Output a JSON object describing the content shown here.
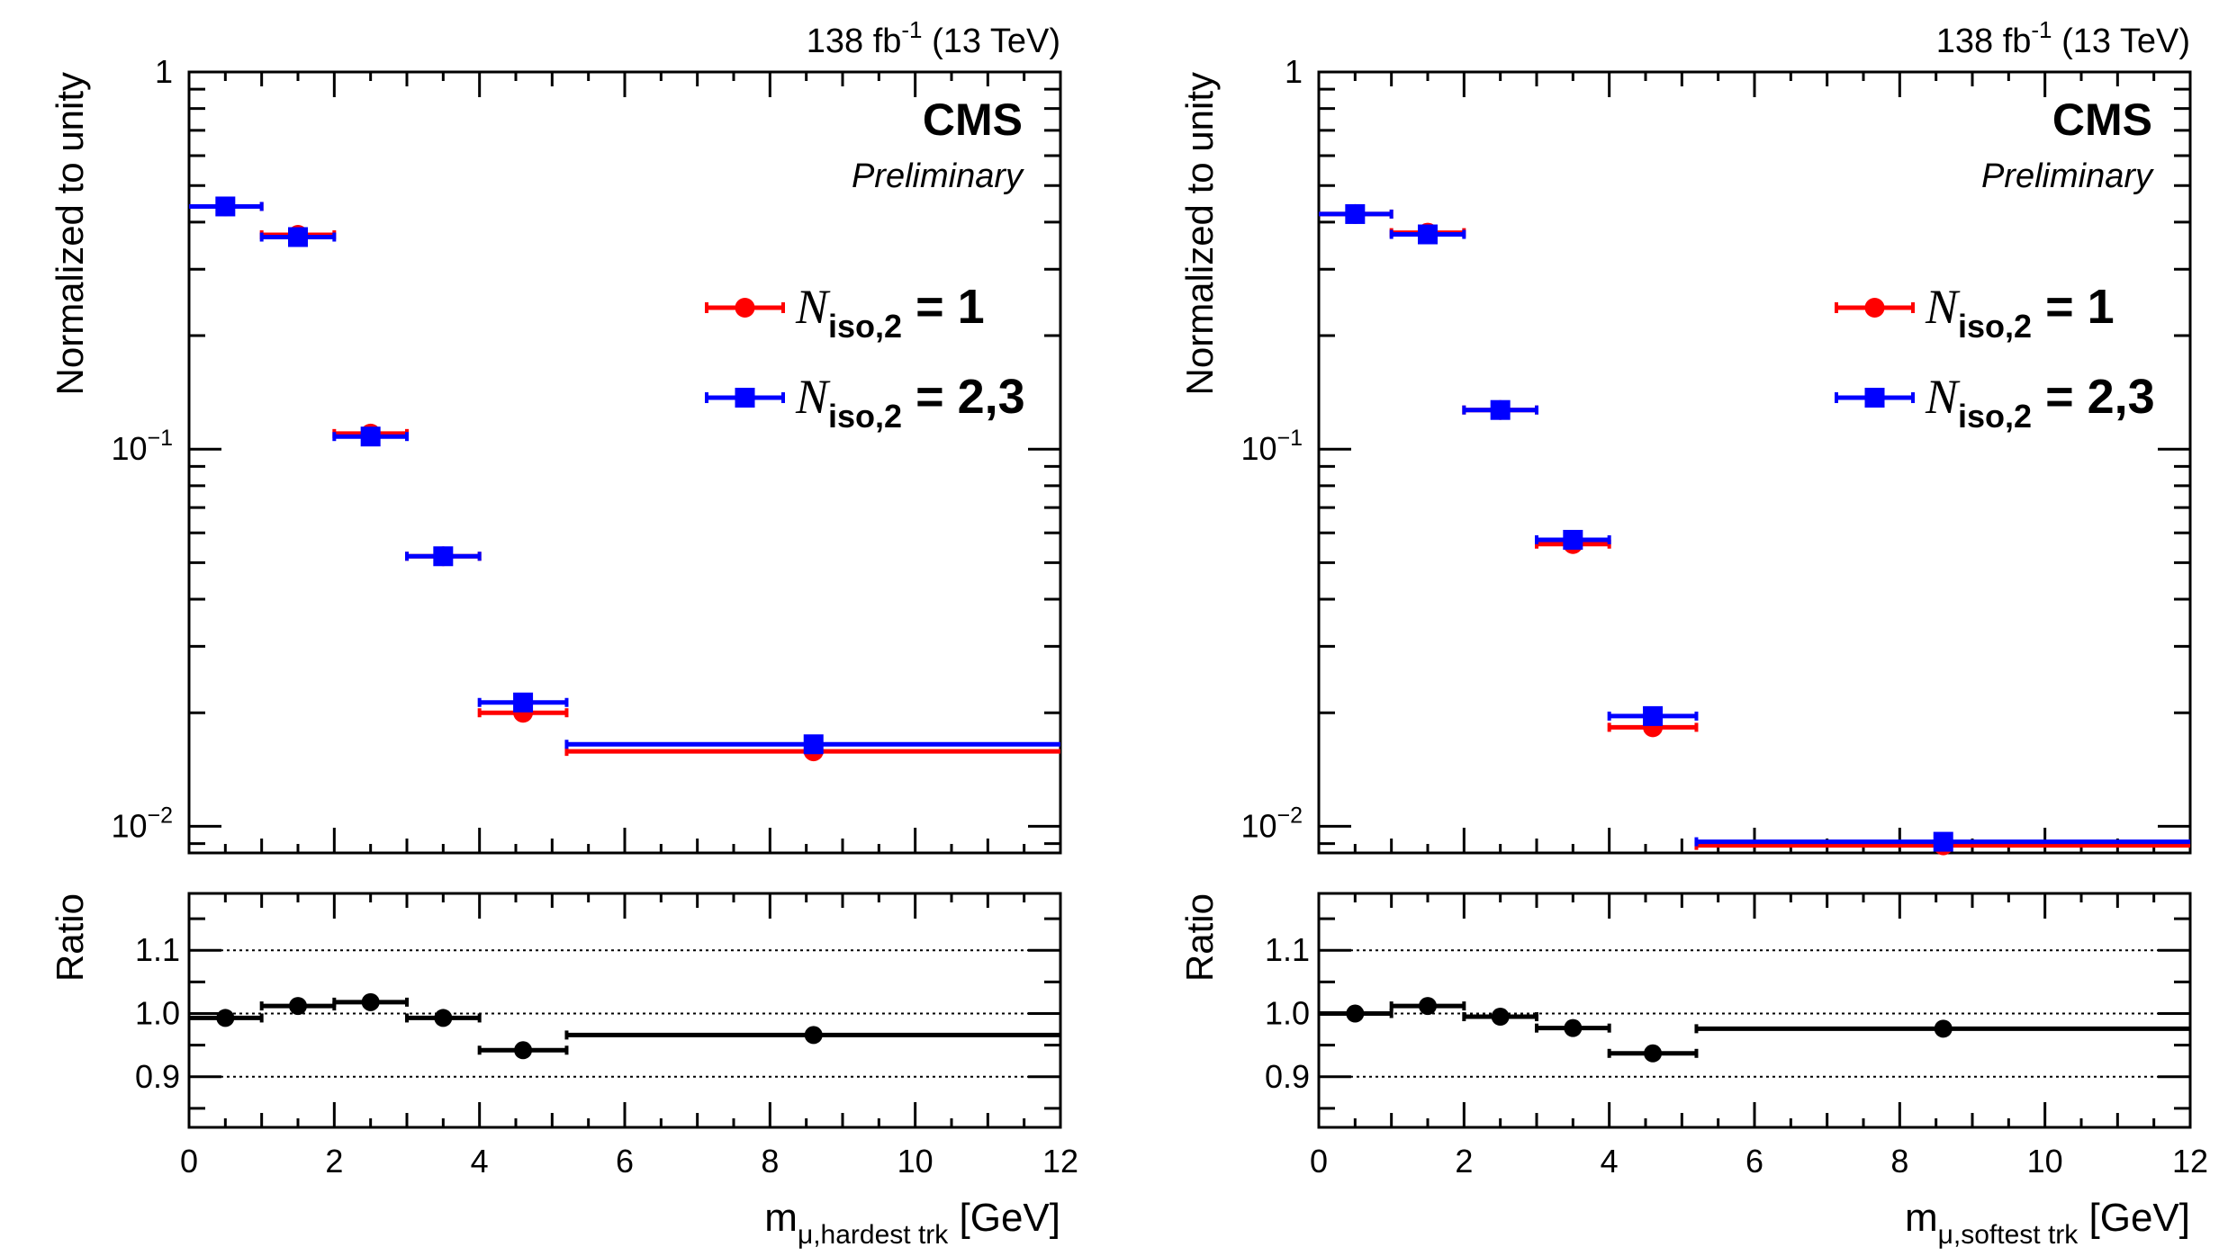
{
  "chart_data": [
    {
      "type": "scatter",
      "panel": "left",
      "lumi_label": {
        "base": "138 fb",
        "sup": "-1",
        "energy": " (13 TeV)"
      },
      "experiment": "CMS",
      "status": "Preliminary",
      "ylabel": "Normalized to unity",
      "yscale": "log",
      "ylim": [
        0.0085,
        1.0
      ],
      "yticklabels": [
        {
          "value": 1,
          "base": "1",
          "exp": ""
        },
        {
          "value": 0.1,
          "base": "10",
          "exp": "−1"
        },
        {
          "value": 0.01,
          "base": "10",
          "exp": "−2"
        }
      ],
      "xlabel": {
        "base": "m",
        "sub": "μ,hardest trk",
        "unit": " [GeV]"
      },
      "xlim": [
        0,
        12
      ],
      "xticks": [
        0,
        2,
        4,
        6,
        8,
        10,
        12
      ],
      "xticklabels": [
        "0",
        "2",
        "4",
        "6",
        "8",
        "10",
        "12"
      ],
      "legend": [
        {
          "base": "N",
          "sub": "iso,2",
          "value": " = 1",
          "color": "#ff0000",
          "marker": "circle"
        },
        {
          "base": "N",
          "sub": "iso,2",
          "value": " = 2,3",
          "color": "#0000ff",
          "marker": "square"
        }
      ],
      "series": [
        {
          "name": "N_iso,2 = 1",
          "color": "#ff0000",
          "marker": "circle",
          "points": [
            {
              "x": 0.5,
              "xlo": 0.0,
              "xhi": 1.0,
              "y": 0.44
            },
            {
              "x": 1.5,
              "xlo": 1.0,
              "xhi": 2.0,
              "y": 0.37
            },
            {
              "x": 2.5,
              "xlo": 2.0,
              "xhi": 3.0,
              "y": 0.11
            },
            {
              "x": 3.5,
              "xlo": 3.0,
              "xhi": 4.0,
              "y": 0.052
            },
            {
              "x": 4.6,
              "xlo": 4.0,
              "xhi": 5.2,
              "y": 0.02
            },
            {
              "x": 8.6,
              "xlo": 5.2,
              "xhi": 12.0,
              "y": 0.0158
            }
          ]
        },
        {
          "name": "N_iso,2 = 2,3",
          "color": "#0000ff",
          "marker": "square",
          "points": [
            {
              "x": 0.5,
              "xlo": 0.0,
              "xhi": 1.0,
              "y": 0.44
            },
            {
              "x": 1.5,
              "xlo": 1.0,
              "xhi": 2.0,
              "y": 0.365
            },
            {
              "x": 2.5,
              "xlo": 2.0,
              "xhi": 3.0,
              "y": 0.108
            },
            {
              "x": 3.5,
              "xlo": 3.0,
              "xhi": 4.0,
              "y": 0.052
            },
            {
              "x": 4.6,
              "xlo": 4.0,
              "xhi": 5.2,
              "y": 0.0213
            },
            {
              "x": 8.6,
              "xlo": 5.2,
              "xhi": 12.0,
              "y": 0.0165
            }
          ]
        }
      ],
      "ratio": {
        "ylabel": "Ratio",
        "ylim": [
          0.82,
          1.19
        ],
        "yticks": [
          0.9,
          1.0,
          1.1
        ],
        "yticklabels": [
          "0.9",
          "1.0",
          "1.1"
        ],
        "gridlines": [
          0.9,
          1.0,
          1.1
        ],
        "color": "#000000",
        "points": [
          {
            "x": 0.5,
            "xlo": 0.0,
            "xhi": 1.0,
            "y": 0.993
          },
          {
            "x": 1.5,
            "xlo": 1.0,
            "xhi": 2.0,
            "y": 1.012
          },
          {
            "x": 2.5,
            "xlo": 2.0,
            "xhi": 3.0,
            "y": 1.018
          },
          {
            "x": 3.5,
            "xlo": 3.0,
            "xhi": 4.0,
            "y": 0.993
          },
          {
            "x": 4.6,
            "xlo": 4.0,
            "xhi": 5.2,
            "y": 0.942
          },
          {
            "x": 8.6,
            "xlo": 5.2,
            "xhi": 12.0,
            "y": 0.966
          }
        ]
      }
    },
    {
      "type": "scatter",
      "panel": "right",
      "lumi_label": {
        "base": "138 fb",
        "sup": "-1",
        "energy": " (13 TeV)"
      },
      "experiment": "CMS",
      "status": "Preliminary",
      "ylabel": "Normalized to unity",
      "yscale": "log",
      "ylim": [
        0.0085,
        1.0
      ],
      "yticklabels": [
        {
          "value": 1,
          "base": "1",
          "exp": ""
        },
        {
          "value": 0.1,
          "base": "10",
          "exp": "−1"
        },
        {
          "value": 0.01,
          "base": "10",
          "exp": "−2"
        }
      ],
      "xlabel": {
        "base": "m",
        "sub": "μ,softest trk",
        "unit": " [GeV]"
      },
      "xlim": [
        0,
        12
      ],
      "xticks": [
        0,
        2,
        4,
        6,
        8,
        10,
        12
      ],
      "xticklabels": [
        "0",
        "2",
        "4",
        "6",
        "8",
        "10",
        "12"
      ],
      "legend": [
        {
          "base": "N",
          "sub": "iso,2",
          "value": " = 1",
          "color": "#ff0000",
          "marker": "circle"
        },
        {
          "base": "N",
          "sub": "iso,2",
          "value": " = 2,3",
          "color": "#0000ff",
          "marker": "square"
        }
      ],
      "series": [
        {
          "name": "N_iso,2 = 1",
          "color": "#ff0000",
          "marker": "circle",
          "points": [
            {
              "x": 0.5,
              "xlo": 0.0,
              "xhi": 1.0,
              "y": 0.42
            },
            {
              "x": 1.5,
              "xlo": 1.0,
              "xhi": 2.0,
              "y": 0.375
            },
            {
              "x": 2.5,
              "xlo": 2.0,
              "xhi": 3.0,
              "y": 0.127
            },
            {
              "x": 3.5,
              "xlo": 3.0,
              "xhi": 4.0,
              "y": 0.056
            },
            {
              "x": 4.6,
              "xlo": 4.0,
              "xhi": 5.2,
              "y": 0.0183
            },
            {
              "x": 8.6,
              "xlo": 5.2,
              "xhi": 12.0,
              "y": 0.0089
            }
          ]
        },
        {
          "name": "N_iso,2 = 2,3",
          "color": "#0000ff",
          "marker": "square",
          "points": [
            {
              "x": 0.5,
              "xlo": 0.0,
              "xhi": 1.0,
              "y": 0.42
            },
            {
              "x": 1.5,
              "xlo": 1.0,
              "xhi": 2.0,
              "y": 0.371
            },
            {
              "x": 2.5,
              "xlo": 2.0,
              "xhi": 3.0,
              "y": 0.127
            },
            {
              "x": 3.5,
              "xlo": 3.0,
              "xhi": 4.0,
              "y": 0.0575
            },
            {
              "x": 4.6,
              "xlo": 4.0,
              "xhi": 5.2,
              "y": 0.0196
            },
            {
              "x": 8.6,
              "xlo": 5.2,
              "xhi": 12.0,
              "y": 0.0091
            }
          ]
        }
      ],
      "ratio": {
        "ylabel": "Ratio",
        "ylim": [
          0.82,
          1.19
        ],
        "yticks": [
          0.9,
          1.0,
          1.1
        ],
        "yticklabels": [
          "0.9",
          "1.0",
          "1.1"
        ],
        "gridlines": [
          0.9,
          1.0,
          1.1
        ],
        "color": "#000000",
        "points": [
          {
            "x": 0.5,
            "xlo": 0.0,
            "xhi": 1.0,
            "y": 1.0
          },
          {
            "x": 1.5,
            "xlo": 1.0,
            "xhi": 2.0,
            "y": 1.012
          },
          {
            "x": 2.5,
            "xlo": 2.0,
            "xhi": 3.0,
            "y": 0.995
          },
          {
            "x": 3.5,
            "xlo": 3.0,
            "xhi": 4.0,
            "y": 0.977
          },
          {
            "x": 4.6,
            "xlo": 4.0,
            "xhi": 5.2,
            "y": 0.937
          },
          {
            "x": 8.6,
            "xlo": 5.2,
            "xhi": 12.0,
            "y": 0.976
          }
        ]
      }
    }
  ]
}
